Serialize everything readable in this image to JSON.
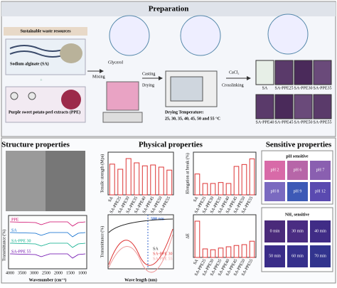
{
  "preparation": {
    "title": "Preparation",
    "resources_label": "Sustainable waste resources",
    "sa_label": "Sodium alginate (SA)",
    "ppe_label": "Purple sweet potato peel extracts (PPE)",
    "glycerol": "Glycerol",
    "mixing": "Mixing",
    "casting": "Casting",
    "drying": "Drying",
    "cacl2": "CaCl₂",
    "crosslinking": "Crosslinking",
    "drying_temperature": "Drying Temperature:",
    "temperatures": "25, 30, 35, 40, 45, 50 and 55 °C",
    "film_labels": [
      "SA",
      "SA-PPE25",
      "SA-PPE30",
      "SA-PPE35",
      "SA-PPE40",
      "SA-PPE45",
      "SA-PPE50",
      "SA-PPE55"
    ]
  },
  "structure": {
    "title": "Structure properties",
    "ftir_ylabel": "Transmittance (%)",
    "ftir_xlabel": "Wavenumber (cm⁻¹)",
    "ftir_series": [
      "PPE",
      "SA",
      "SA-PPE 30",
      "SA-PPE 55"
    ],
    "ftir_xticks": [
      "4000",
      "3500",
      "3000",
      "2500",
      "2000",
      "1500",
      "1000"
    ]
  },
  "physical": {
    "title": "Physical properties",
    "tensile": {
      "ylabel": "Tensile strength (Mpa)",
      "categories": [
        "SA",
        "SA-PPE25",
        "SA-PPE30",
        "SA-PPE35",
        "SA-PPE40",
        "SA-PPE45",
        "SA-PPE50",
        "SA-PPE55"
      ],
      "values": [
        72,
        60,
        85,
        75,
        68,
        70,
        65,
        58
      ],
      "ylim": [
        0,
        100
      ]
    },
    "elongation": {
      "ylabel": "Elongation at break (%)",
      "categories": [
        "SA",
        "SA-PPE25",
        "SA-PPE30",
        "SA-PPE35",
        "SA-PPE40",
        "SA-PPE45",
        "SA-PPE50",
        "SA-PPE55"
      ],
      "values": [
        22,
        12,
        12,
        13,
        12,
        30,
        32,
        38
      ],
      "ylim": [
        0,
        45
      ]
    },
    "transmittance": {
      "ylabel": "Transmittance (%)",
      "xlabel": "Wave length (nm)",
      "annotation": "500 nm",
      "series": [
        "SA",
        "SA-PPE 30",
        "SA-PPE 55"
      ]
    },
    "delta_e": {
      "ylabel": "ΔE",
      "categories": [
        "SA",
        "SA-PPE25",
        "SA-PPE30",
        "SA-PPE35",
        "SA-PPE40",
        "SA-PPE45",
        "SA-PPE50",
        "SA-PPE55"
      ],
      "values": [
        85,
        20,
        18,
        22,
        25,
        28,
        30,
        38
      ],
      "ylim": [
        0,
        100
      ]
    }
  },
  "sensitive": {
    "title": "Sensitive properties",
    "ph_title": "pH sensitive",
    "ph": [
      "pH 2",
      "pH 6",
      "pH 7",
      "pH 8",
      "pH 9",
      "pH 12"
    ],
    "nh3_title": "NH₃ sensitive",
    "nh3": [
      "0 min",
      "30 min",
      "40 min",
      "50 min",
      "60 min",
      "70 min"
    ]
  }
}
